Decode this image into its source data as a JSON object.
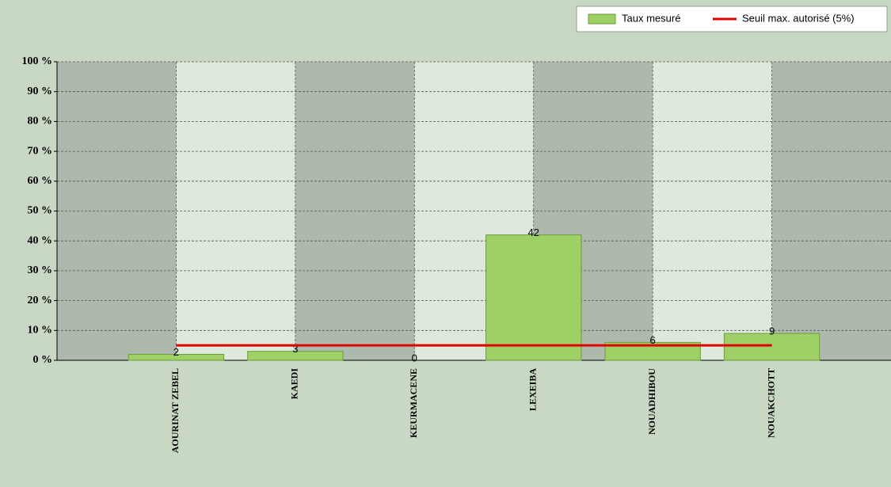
{
  "chart_data": {
    "type": "bar",
    "categories": [
      "AOURINAT ZEBEL",
      "KAEDI",
      "KEURMACENE",
      "LEXEIBA",
      "NOUADHIBOU",
      "NOUAKCHOTT"
    ],
    "series": [
      {
        "name": "Taux mesuré",
        "type": "bar",
        "color": "#9fd065",
        "values": [
          2,
          3,
          0,
          42,
          6,
          9
        ]
      },
      {
        "name": "Seuil max. autorisé (5%)",
        "type": "line",
        "color": "#e00000",
        "values": [
          5,
          5,
          5,
          5,
          5,
          5
        ]
      }
    ],
    "ylim": [
      0,
      100
    ],
    "yticks": [
      {
        "value": 0,
        "label": "0 %"
      },
      {
        "value": 10,
        "label": "10 %"
      },
      {
        "value": 20,
        "label": "20 %"
      },
      {
        "value": 30,
        "label": "30 %"
      },
      {
        "value": 40,
        "label": "40 %"
      },
      {
        "value": 50,
        "label": "50 %"
      },
      {
        "value": 60,
        "label": "60 %"
      },
      {
        "value": 70,
        "label": "70 %"
      },
      {
        "value": 80,
        "label": "80 %"
      },
      {
        "value": 90,
        "label": "90 %"
      },
      {
        "value": 100,
        "label": "100 %"
      }
    ],
    "grid": true,
    "legend": "top-right"
  }
}
